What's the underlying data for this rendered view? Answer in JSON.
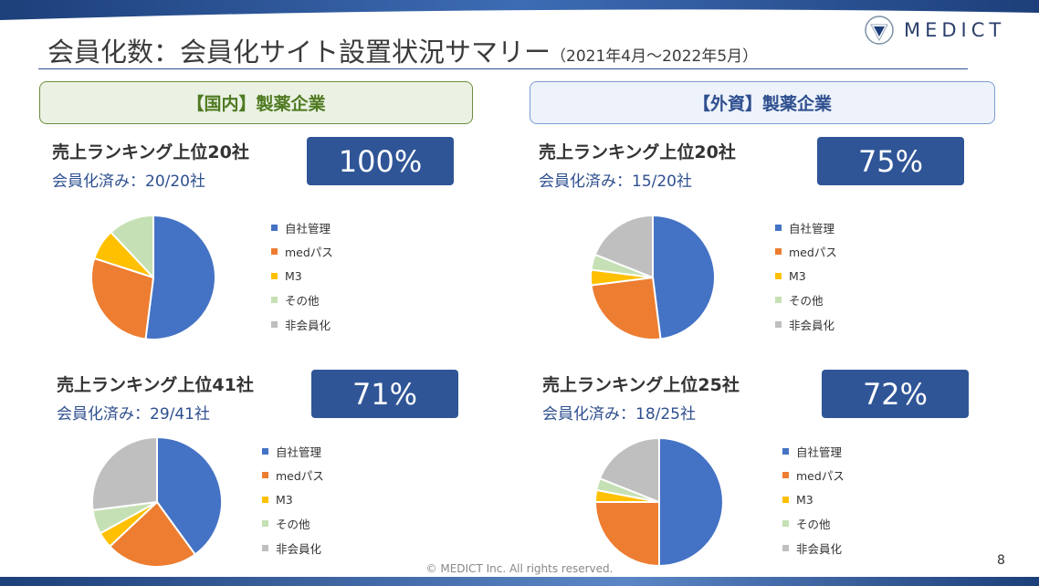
{
  "header": {
    "title": "会員化数：会員化サイト設置状況サマリー",
    "period": "（2021年4月～2022年5月）",
    "logo": "MEDICT"
  },
  "sections": {
    "domestic": "【国内】製薬企業",
    "foreign": "【外資】製薬企業"
  },
  "legend_labels": [
    "自社管理",
    "medパス",
    "M3",
    "その他",
    "非会員化"
  ],
  "colors": [
    "#4472c4",
    "#ed7d31",
    "#ffc000",
    "#c5e0b4",
    "#bfbfbf"
  ],
  "chart_data": [
    {
      "type": "pie",
      "title": "売上ランキング上位20社",
      "subtitle": "会員化済み：20/20社",
      "badge": "100%",
      "categories": [
        "自社管理",
        "medパス",
        "M3",
        "その他",
        "非会員化"
      ],
      "values": [
        52,
        28,
        8,
        12,
        0
      ],
      "legend": "right"
    },
    {
      "type": "pie",
      "title": "売上ランキング上位20社",
      "subtitle": "会員化済み：15/20社",
      "badge": "75%",
      "categories": [
        "自社管理",
        "medパス",
        "M3",
        "その他",
        "非会員化"
      ],
      "values": [
        48,
        25,
        4,
        4,
        19
      ],
      "legend": "right"
    },
    {
      "type": "pie",
      "title": "売上ランキング上位41社",
      "subtitle": "会員化済み：29/41社",
      "badge": "71%",
      "categories": [
        "自社管理",
        "medパス",
        "M3",
        "その他",
        "非会員化"
      ],
      "values": [
        40,
        23,
        4,
        6,
        27
      ],
      "legend": "right"
    },
    {
      "type": "pie",
      "title": "売上ランキング上位25社",
      "subtitle": "会員化済み：18/25社",
      "badge": "72%",
      "categories": [
        "自社管理",
        "medパス",
        "M3",
        "その他",
        "非会員化"
      ],
      "values": [
        50,
        25,
        3,
        3,
        19
      ],
      "legend": "right"
    }
  ],
  "footer": {
    "copyright": "© MEDICT Inc.  All rights reserved.",
    "page": "8"
  }
}
